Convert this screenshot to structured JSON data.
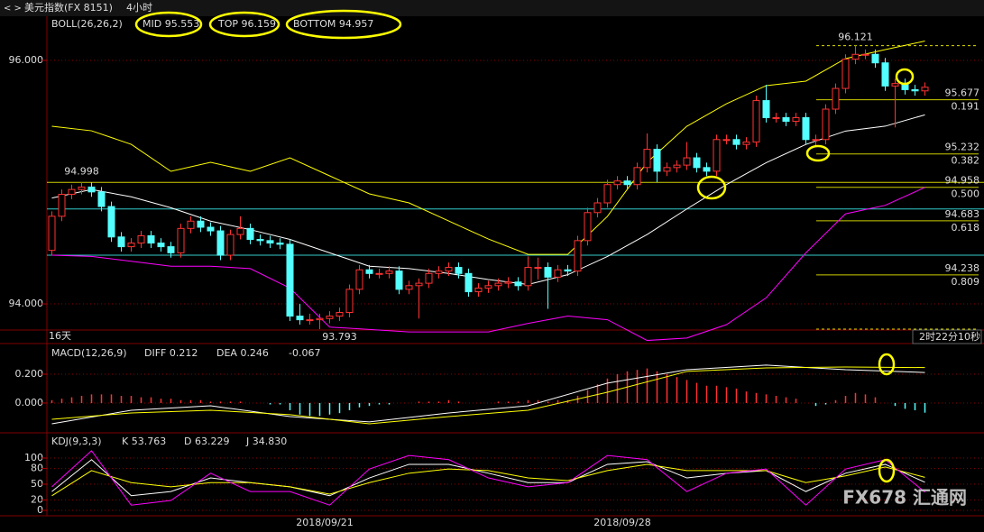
{
  "header": {
    "title": "美元指数(FX 8151)",
    "period": "4小时"
  },
  "chart_data": [
    {
      "type": "candlestick",
      "legend": [
        {
          "text": "BOLL(26,26,2)",
          "color": "#dddddd"
        },
        {
          "text": "MID 95.553",
          "color": "#ffffff"
        },
        {
          "text": "TOP 96.159",
          "color": "#ffff00"
        },
        {
          "text": "BOTTOM 94.957",
          "color": "#ff00ff"
        }
      ],
      "up_color": "#ff3232",
      "down_color": "#54ffff",
      "xlim": [
        -0.5,
        88.5
      ],
      "ylim": [
        93.793,
        96.363
      ],
      "yticks": [
        {
          "value": 96,
          "label": "96.000"
        },
        {
          "value": 94,
          "label": "94.000"
        }
      ],
      "grid": true,
      "xticks": [
        {
          "value": 27.5,
          "label": "2018/09/21"
        },
        {
          "value": 57.5,
          "label": "2018/09/28"
        }
      ],
      "ohlc": [
        [
          94.44,
          94.76,
          94.4,
          94.72
        ],
        [
          94.72,
          94.94,
          94.68,
          94.9
        ],
        [
          94.9,
          94.98,
          94.86,
          94.94
        ],
        [
          94.94,
          95.0,
          94.9,
          94.96
        ],
        [
          94.96,
          94.998,
          94.88,
          94.92
        ],
        [
          94.92,
          94.96,
          94.76,
          94.8
        ],
        [
          94.8,
          94.84,
          94.51,
          94.55
        ],
        [
          94.55,
          94.59,
          94.43,
          94.47
        ],
        [
          94.47,
          94.54,
          94.43,
          94.5
        ],
        [
          94.5,
          94.6,
          94.46,
          94.56
        ],
        [
          94.56,
          94.6,
          94.46,
          94.5
        ],
        [
          94.5,
          94.54,
          94.43,
          94.47
        ],
        [
          94.47,
          94.51,
          94.38,
          94.42
        ],
        [
          94.42,
          94.66,
          94.38,
          94.62
        ],
        [
          94.62,
          94.72,
          94.58,
          94.68
        ],
        [
          94.68,
          94.72,
          94.59,
          94.63
        ],
        [
          94.63,
          94.67,
          94.56,
          94.6
        ],
        [
          94.6,
          94.64,
          94.36,
          94.4
        ],
        [
          94.4,
          94.61,
          94.36,
          94.57
        ],
        [
          94.57,
          94.72,
          94.53,
          94.62
        ],
        [
          94.62,
          94.66,
          94.49,
          94.53
        ],
        [
          94.53,
          94.57,
          94.48,
          94.52
        ],
        [
          94.52,
          94.56,
          94.46,
          94.5
        ],
        [
          94.5,
          94.54,
          94.45,
          94.49
        ],
        [
          94.49,
          94.53,
          93.86,
          93.9
        ],
        [
          93.9,
          94.0,
          93.83,
          93.87
        ],
        [
          93.87,
          93.92,
          93.83,
          93.87
        ],
        [
          93.87,
          93.92,
          93.793,
          93.88
        ],
        [
          93.88,
          93.94,
          93.84,
          93.9
        ],
        [
          93.9,
          93.97,
          93.86,
          93.93
        ],
        [
          93.93,
          94.16,
          93.89,
          94.12
        ],
        [
          94.12,
          94.32,
          94.08,
          94.28
        ],
        [
          94.28,
          94.32,
          94.21,
          94.25
        ],
        [
          94.25,
          94.29,
          94.21,
          94.25
        ],
        [
          94.25,
          94.31,
          94.21,
          94.27
        ],
        [
          94.27,
          94.31,
          94.08,
          94.12
        ],
        [
          94.12,
          94.19,
          94.08,
          94.15
        ],
        [
          94.15,
          94.21,
          93.88,
          94.17
        ],
        [
          94.17,
          94.29,
          94.13,
          94.25
        ],
        [
          94.25,
          94.31,
          94.21,
          94.27
        ],
        [
          94.27,
          94.34,
          94.23,
          94.3
        ],
        [
          94.3,
          94.34,
          94.21,
          94.25
        ],
        [
          94.25,
          94.29,
          94.06,
          94.1
        ],
        [
          94.1,
          94.17,
          94.06,
          94.13
        ],
        [
          94.13,
          94.19,
          94.09,
          94.15
        ],
        [
          94.15,
          94.21,
          94.11,
          94.17
        ],
        [
          94.17,
          94.22,
          94.13,
          94.18
        ],
        [
          94.18,
          94.22,
          94.11,
          94.15
        ],
        [
          94.15,
          94.39,
          94.11,
          94.3
        ],
        [
          94.3,
          94.38,
          94.2,
          94.3
        ],
        [
          94.3,
          94.34,
          93.96,
          94.22
        ],
        [
          94.22,
          94.32,
          94.18,
          94.28
        ],
        [
          94.28,
          94.32,
          94.23,
          94.27
        ],
        [
          94.27,
          94.56,
          94.23,
          94.52
        ],
        [
          94.52,
          94.79,
          94.48,
          94.75
        ],
        [
          94.75,
          94.87,
          94.71,
          94.83
        ],
        [
          94.83,
          95.02,
          94.79,
          94.98
        ],
        [
          94.98,
          95.05,
          94.94,
          95.01
        ],
        [
          95.01,
          95.05,
          94.94,
          94.98
        ],
        [
          94.98,
          95.16,
          94.94,
          95.12
        ],
        [
          95.12,
          95.4,
          95.08,
          95.27
        ],
        [
          95.27,
          95.31,
          95.0,
          95.09
        ],
        [
          95.09,
          95.16,
          95.05,
          95.12
        ],
        [
          95.12,
          95.18,
          95.08,
          95.14
        ],
        [
          95.14,
          95.33,
          95.1,
          95.2
        ],
        [
          95.2,
          95.24,
          95.08,
          95.12
        ],
        [
          95.12,
          95.16,
          95.05,
          95.09
        ],
        [
          95.09,
          95.39,
          95.05,
          95.35
        ],
        [
          95.35,
          95.39,
          95.31,
          95.35
        ],
        [
          95.35,
          95.39,
          95.27,
          95.31
        ],
        [
          95.31,
          95.37,
          95.27,
          95.33
        ],
        [
          95.33,
          95.71,
          95.29,
          95.67
        ],
        [
          95.67,
          95.8,
          95.49,
          95.53
        ],
        [
          95.53,
          95.57,
          95.49,
          95.53
        ],
        [
          95.53,
          95.57,
          95.46,
          95.5
        ],
        [
          95.5,
          95.57,
          95.46,
          95.53
        ],
        [
          95.53,
          95.57,
          95.31,
          95.35
        ],
        [
          95.35,
          95.39,
          95.29,
          95.35
        ],
        [
          95.35,
          95.64,
          95.31,
          95.6
        ],
        [
          95.6,
          95.81,
          95.56,
          95.77
        ],
        [
          95.77,
          96.05,
          95.73,
          96.01
        ],
        [
          96.01,
          96.121,
          95.97,
          96.05
        ],
        [
          96.05,
          96.09,
          96.01,
          96.05
        ],
        [
          96.05,
          96.09,
          95.94,
          95.98
        ],
        [
          95.98,
          96.02,
          95.75,
          95.79
        ],
        [
          95.79,
          95.85,
          95.45,
          95.81
        ],
        [
          95.81,
          95.85,
          95.72,
          95.76
        ],
        [
          95.76,
          95.8,
          95.71,
          95.75
        ],
        [
          95.75,
          95.82,
          95.71,
          95.78
        ]
      ],
      "series": [
        {
          "color": "#ffffff",
          "x": [
            0,
            4,
            8,
            12,
            16,
            20,
            24,
            28,
            32,
            36,
            40,
            44,
            48,
            52,
            56,
            60,
            64,
            68,
            72,
            76,
            80,
            84,
            88
          ],
          "values": [
            94.87,
            94.94,
            94.88,
            94.79,
            94.68,
            94.61,
            94.53,
            94.42,
            94.31,
            94.29,
            94.25,
            94.2,
            94.16,
            94.24,
            94.39,
            94.57,
            94.78,
            94.98,
            95.16,
            95.31,
            95.42,
            95.46,
            95.553
          ]
        },
        {
          "color": "#ffff00",
          "x": [
            0,
            4,
            8,
            12,
            16,
            20,
            24,
            28,
            32,
            36,
            40,
            44,
            48,
            52,
            56,
            60,
            64,
            68,
            72,
            76,
            80,
            84,
            88
          ],
          "values": [
            95.459,
            95.422,
            95.311,
            95.089,
            95.163,
            95.089,
            95.2,
            95.052,
            94.904,
            94.83,
            94.681,
            94.533,
            94.407,
            94.407,
            94.719,
            95.163,
            95.459,
            95.644,
            95.793,
            95.83,
            96.015,
            96.089,
            96.159
          ]
        },
        {
          "color": "#ff00ff",
          "x": [
            0,
            4,
            8,
            12,
            16,
            20,
            24,
            28,
            32,
            36,
            40,
            44,
            48,
            52,
            56,
            60,
            64,
            68,
            72,
            76,
            80,
            84,
            88
          ],
          "values": [
            94.4,
            94.39,
            94.35,
            94.31,
            94.31,
            94.29,
            94.13,
            93.81,
            93.79,
            93.77,
            93.77,
            93.77,
            93.84,
            93.9,
            93.87,
            93.7,
            93.72,
            93.83,
            94.05,
            94.42,
            94.74,
            94.81,
            94.957
          ]
        }
      ],
      "hlines": [
        {
          "value": 94.998,
          "color": "#cccc00"
        },
        {
          "value": 94.78,
          "color": "#33cccc"
        },
        {
          "value": 94.4,
          "color": "#33cccc"
        }
      ],
      "annotations": [
        {
          "value": 94.998,
          "label": "94.998",
          "x": 3,
          "color": "#ff4040"
        },
        {
          "value": 93.793,
          "label": "93.793",
          "x": 29,
          "color": "#54ffff"
        },
        {
          "value": 96.121,
          "label": "96.121",
          "x": 81,
          "color": "#ff4040"
        }
      ],
      "levels": [
        {
          "value": 96.121
        },
        {
          "value": 95.677,
          "label": "95.677",
          "ratio": "0.191"
        },
        {
          "value": 95.232,
          "label": "95.232",
          "ratio": "0.382"
        },
        {
          "value": 94.958,
          "label": "94.958",
          "ratio": "0.500"
        },
        {
          "value": 94.683,
          "label": "94.683",
          "ratio": "0.618"
        },
        {
          "value": 94.238,
          "label": "94.238",
          "ratio": "0.809"
        },
        {
          "value": 93.793
        }
      ],
      "footer_left": "16天",
      "footer_right": "2时22分10秒"
    },
    {
      "type": "macd",
      "legend": [
        {
          "text": "MACD(12,26,9)",
          "color": "#dddddd"
        },
        {
          "text": "DIFF 0.212",
          "color": "#ffffff"
        },
        {
          "text": "DEA 0.246",
          "color": "#ffff00"
        },
        {
          "text": "-0.067",
          "color": "#ffffff"
        }
      ],
      "up_color": "#ff3232",
      "down_color": "#54ffff",
      "xlim": [
        -0.5,
        88.5
      ],
      "ylim": [
        -0.194,
        0.4
      ],
      "yticks": [
        {
          "value": 0.2,
          "label": "0.200"
        },
        {
          "value": 0,
          "label": "0.000"
        }
      ],
      "grid": true,
      "bars": [
        0.02,
        0.03,
        0.04,
        0.05,
        0.06,
        0.06,
        0.06,
        0.05,
        0.05,
        0.04,
        0.04,
        0.03,
        0.03,
        0.02,
        0.02,
        0.02,
        0.01,
        0.01,
        0.01,
        0.01,
        0.0,
        0.0,
        -0.01,
        -0.01,
        -0.05,
        -0.08,
        -0.09,
        -0.09,
        -0.08,
        -0.07,
        -0.05,
        -0.03,
        -0.02,
        -0.01,
        -0.01,
        0.0,
        0.0,
        0.01,
        0.01,
        0.01,
        0.02,
        0.01,
        0.0,
        0.0,
        0.0,
        0.01,
        0.01,
        0.01,
        0.02,
        0.02,
        0.01,
        0.02,
        0.02,
        0.05,
        0.09,
        0.13,
        0.17,
        0.2,
        0.22,
        0.23,
        0.24,
        0.22,
        0.2,
        0.18,
        0.16,
        0.14,
        0.12,
        0.12,
        0.11,
        0.1,
        0.08,
        0.07,
        0.06,
        0.05,
        0.04,
        0.03,
        0.0,
        -0.02,
        -0.01,
        0.02,
        0.05,
        0.07,
        0.06,
        0.04,
        0.0,
        -0.02,
        -0.04,
        -0.05,
        -0.067
      ],
      "series": [
        {
          "color": "#ffffff",
          "x": [
            0,
            8,
            16,
            24,
            32,
            40,
            48,
            56,
            64,
            72,
            80,
            88
          ],
          "values": [
            -0.144,
            -0.05,
            -0.019,
            -0.094,
            -0.131,
            -0.069,
            -0.019,
            0.138,
            0.231,
            0.263,
            0.231,
            0.212
          ]
        },
        {
          "color": "#ffff00",
          "x": [
            0,
            8,
            16,
            24,
            32,
            40,
            48,
            56,
            64,
            72,
            80,
            88
          ],
          "values": [
            -0.113,
            -0.069,
            -0.05,
            -0.081,
            -0.144,
            -0.094,
            -0.05,
            0.075,
            0.219,
            0.244,
            0.25,
            0.246
          ]
        }
      ]
    },
    {
      "type": "kdj",
      "legend": [
        {
          "text": "KDJ(9,3,3)",
          "color": "#dddddd"
        },
        {
          "text": "K 53.763",
          "color": "#ffffff"
        },
        {
          "text": "D 63.229",
          "color": "#ffff00"
        },
        {
          "text": "J 34.830",
          "color": "#ff00ff"
        }
      ],
      "xlim": [
        -0.5,
        88.5
      ],
      "ylim": [
        -10.3,
        144.8
      ],
      "yticks": [
        0,
        20,
        50,
        80,
        100
      ],
      "grid": true,
      "series": [
        {
          "color": "#ffffff",
          "x": [
            0,
            4,
            8,
            12,
            16,
            20,
            24,
            28,
            32,
            36,
            40,
            44,
            48,
            52,
            56,
            60,
            64,
            68,
            72,
            76,
            80,
            84,
            88
          ],
          "values": [
            36,
            97,
            28,
            36,
            62,
            53,
            45,
            28,
            62,
            88,
            88,
            71,
            53,
            53,
            88,
            93,
            62,
            71,
            76,
            36,
            71,
            88,
            53.763
          ]
        },
        {
          "color": "#ffff00",
          "x": [
            0,
            4,
            8,
            12,
            16,
            20,
            24,
            28,
            32,
            36,
            40,
            44,
            48,
            52,
            56,
            60,
            64,
            68,
            72,
            76,
            80,
            84,
            88
          ],
          "values": [
            28,
            76,
            53,
            45,
            53,
            53,
            45,
            31,
            53,
            71,
            79,
            76,
            62,
            57,
            76,
            88,
            76,
            76,
            76,
            53,
            66,
            83,
            63.229
          ]
        },
        {
          "color": "#ff00ff",
          "x": [
            0,
            4,
            8,
            12,
            16,
            20,
            24,
            28,
            32,
            36,
            40,
            44,
            48,
            52,
            56,
            60,
            64,
            68,
            72,
            76,
            80,
            84,
            88
          ],
          "values": [
            45,
            114,
            10,
            19,
            71,
            36,
            36,
            10,
            79,
            105,
            97,
            62,
            45,
            53,
            105,
            97,
            36,
            71,
            79,
            10,
            79,
            97,
            34.83
          ]
        }
      ]
    }
  ],
  "watermark": "FX678 汇通网"
}
